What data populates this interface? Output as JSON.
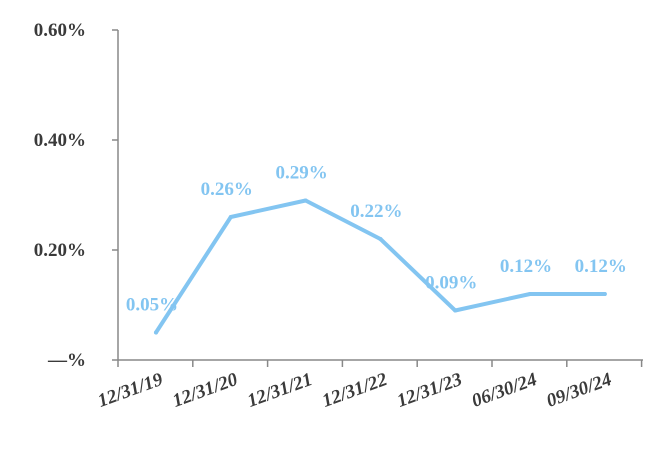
{
  "chart_data": {
    "type": "line",
    "categories": [
      "12/31/19",
      "12/31/20",
      "12/31/21",
      "12/31/22",
      "12/31/23",
      "06/30/24",
      "09/30/24"
    ],
    "series": [
      {
        "values": [
          0.05,
          0.26,
          0.29,
          0.22,
          0.09,
          0.12,
          0.12
        ],
        "labels": [
          "0.05%",
          "0.26%",
          "0.29%",
          "0.22%",
          "0.09%",
          "0.12%",
          "0.12%"
        ],
        "color": "#83c5f1"
      }
    ],
    "yticks": [
      {
        "value": 0,
        "label": "—%"
      },
      {
        "value": 0.2,
        "label": "0.20%"
      },
      {
        "value": 0.4,
        "label": "0.40%"
      },
      {
        "value": 0.6,
        "label": "0.60%"
      }
    ],
    "ylim": [
      0,
      0.6
    ],
    "title": "",
    "xlabel": "",
    "ylabel": "",
    "grid": false,
    "legend": "none",
    "axis_color": "#888888"
  }
}
